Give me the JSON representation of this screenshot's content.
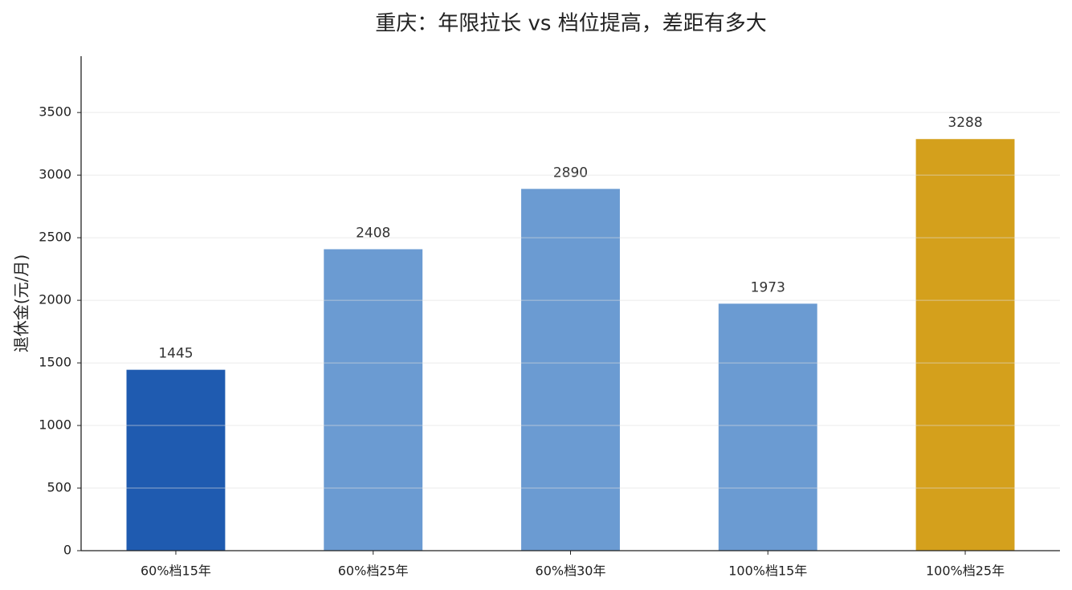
{
  "chart_data": {
    "type": "bar",
    "title": "重庆：年限拉长 vs 档位提高，差距有多大",
    "ylabel": "退休金(元/月)",
    "categories": [
      "60%档15年",
      "60%档25年",
      "60%档30年",
      "100%档15年",
      "100%档25年"
    ],
    "values": [
      1445,
      2408,
      2890,
      1973,
      3288
    ],
    "colors": [
      "#1f5bb0",
      "#6b9bd2",
      "#6b9bd2",
      "#6b9bd2",
      "#d4a01c"
    ],
    "ylim": [
      0,
      3950
    ],
    "yticks": [
      0,
      500,
      1000,
      1500,
      2000,
      2500,
      3000,
      3500
    ],
    "grid": true
  }
}
